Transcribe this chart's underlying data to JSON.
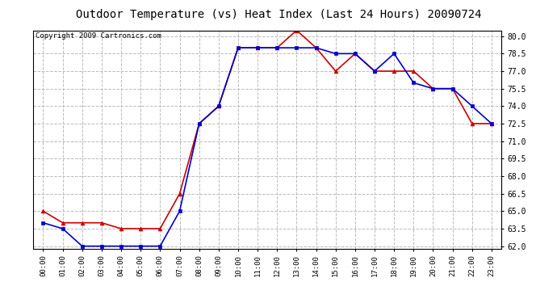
{
  "title": "Outdoor Temperature (vs) Heat Index (Last 24 Hours) 20090724",
  "copyright": "Copyright 2009 Cartronics.com",
  "x_labels": [
    "00:00",
    "01:00",
    "02:00",
    "03:00",
    "04:00",
    "05:00",
    "06:00",
    "07:00",
    "08:00",
    "09:00",
    "10:00",
    "11:00",
    "12:00",
    "13:00",
    "14:00",
    "15:00",
    "16:00",
    "17:00",
    "18:00",
    "19:00",
    "20:00",
    "21:00",
    "22:00",
    "23:00"
  ],
  "temp": [
    65.0,
    64.0,
    64.0,
    64.0,
    63.5,
    63.5,
    63.5,
    66.5,
    72.5,
    74.0,
    79.0,
    79.0,
    79.0,
    80.5,
    79.0,
    77.0,
    78.5,
    77.0,
    77.0,
    77.0,
    75.5,
    75.5,
    72.5,
    72.5
  ],
  "heat_index": [
    64.0,
    63.5,
    62.0,
    62.0,
    62.0,
    62.0,
    62.0,
    65.0,
    72.5,
    74.0,
    79.0,
    79.0,
    79.0,
    79.0,
    79.0,
    78.5,
    78.5,
    77.0,
    78.5,
    76.0,
    75.5,
    75.5,
    74.0,
    72.5
  ],
  "temp_color": "#cc0000",
  "heat_index_color": "#0000cc",
  "ylim_min": 62.0,
  "ylim_max": 80.5,
  "bg_color": "#ffffff",
  "plot_bg_color": "#ffffff",
  "grid_color": "#bbbbbb",
  "title_fontsize": 10,
  "copyright_fontsize": 6.5
}
